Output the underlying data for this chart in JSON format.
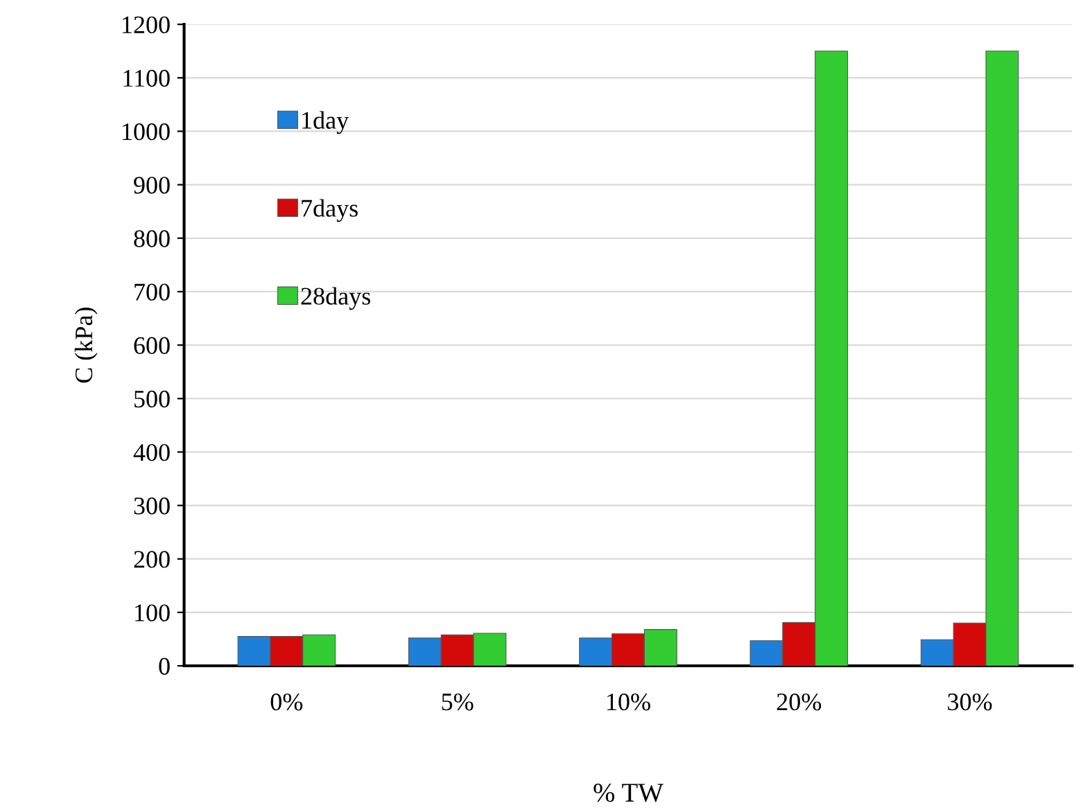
{
  "chart_data": {
    "type": "bar",
    "xlabel": "% TW",
    "ylabel": "C (kPa)",
    "categories": [
      "0%",
      "5%",
      "10%",
      "20%",
      "30%"
    ],
    "series": [
      {
        "name": "1day",
        "color": "#1e7fd8",
        "values": [
          55,
          52,
          52,
          47,
          49
        ]
      },
      {
        "name": "7days",
        "color": "#d40a0a",
        "values": [
          55,
          58,
          60,
          81,
          80
        ]
      },
      {
        "name": "28days",
        "color": "#33cc33",
        "values": [
          58,
          61,
          68,
          1150,
          1150
        ]
      }
    ],
    "ylim": [
      0,
      1200
    ],
    "yticks": [
      0,
      100,
      200,
      300,
      400,
      500,
      600,
      700,
      800,
      900,
      1000,
      1100,
      1200
    ],
    "grid": "y",
    "legend": "top left"
  }
}
